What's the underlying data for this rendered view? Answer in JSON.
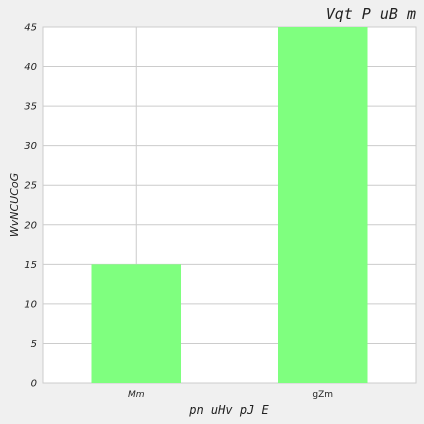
{
  "chart_data": {
    "type": "bar",
    "title": "Vqt P uB m",
    "xlabel": "pn uHv  pJ E",
    "ylabel": "WvNCUCoG",
    "categories": [
      "Mm",
      "gZm"
    ],
    "values": [
      15,
      45
    ],
    "ylim": [
      0,
      45
    ],
    "yticks": [
      0,
      5,
      10,
      15,
      20,
      25,
      30,
      35,
      40,
      45
    ],
    "grid": true,
    "bar_color": "#7fff7f",
    "background": "#ffffff",
    "figure_background": "#f0f0f0",
    "grid_color": "#cccccc"
  }
}
